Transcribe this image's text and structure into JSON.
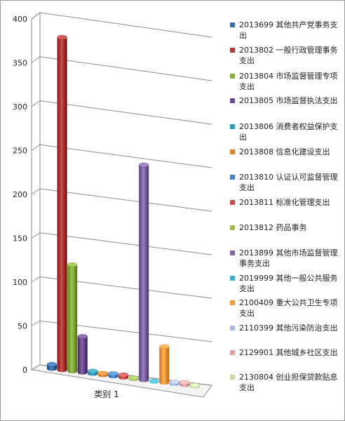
{
  "chart_data": {
    "type": "bar",
    "style": "3d-cylinder",
    "categories": [
      "类别 1"
    ],
    "ylim": [
      0,
      400
    ],
    "yticks": [
      0,
      50,
      100,
      150,
      200,
      250,
      300,
      350,
      400
    ],
    "grid": true,
    "legend_position": "right",
    "series": [
      {
        "name": "2013699 其他共产党事务支出",
        "values": [
          5
        ],
        "color": "#3a6ea8"
      },
      {
        "name": "2013802 一般行政管理事务支出",
        "values": [
          378
        ],
        "color": "#b03a35"
      },
      {
        "name": "2013804 市场监督管理专项支出",
        "values": [
          121
        ],
        "color": "#86ac3e"
      },
      {
        "name": "2013805 市场监督执法支出",
        "values": [
          41
        ],
        "color": "#6c4c90"
      },
      {
        "name": "2013806 消费者权益保护支出",
        "values": [
          3
        ],
        "color": "#2f9ab4"
      },
      {
        "name": "2013808 信息化建设支出",
        "values": [
          2
        ],
        "color": "#e0822c"
      },
      {
        "name": "2013810 认证认可监督管理支出",
        "values": [
          3
        ],
        "color": "#4a82c6"
      },
      {
        "name": "2013811 标准化管理支出",
        "values": [
          3
        ],
        "color": "#c6504b"
      },
      {
        "name": "2013812 药品事务",
        "values": [
          1
        ],
        "color": "#9dbb59"
      },
      {
        "name": "2013899 其他市场监督管理事务支出",
        "values": [
          245
        ],
        "color": "#8166a8"
      },
      {
        "name": "2019999 其他一般公共服务支出",
        "values": [
          0
        ],
        "color": "#3cb0cc"
      },
      {
        "name": "2100409 重大公共卫生专项支出",
        "values": [
          41
        ],
        "color": "#f79a3e"
      },
      {
        "name": "2110399 其他污染防治支出",
        "values": [
          2
        ],
        "color": "#a7b9dc"
      },
      {
        "name": "2129901 其他城乡社区支出",
        "values": [
          3
        ],
        "color": "#dea4a2"
      },
      {
        "name": "2130804 创业担保贷款贴息支出",
        "values": [
          1
        ],
        "color": "#c4d8a0"
      }
    ]
  }
}
